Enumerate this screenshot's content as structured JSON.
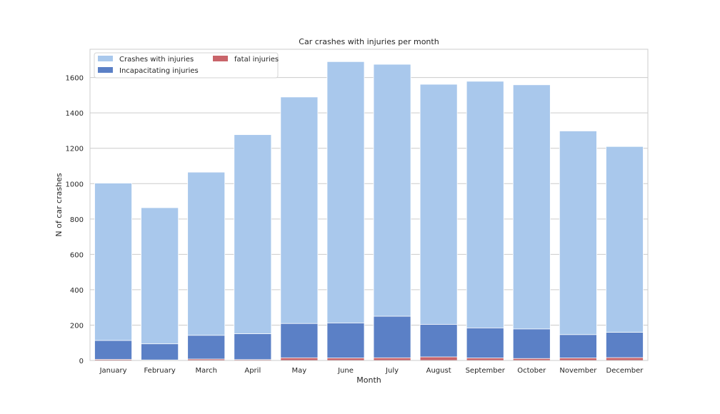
{
  "chart_data": {
    "type": "bar",
    "title": "Car crashes with injuries per month",
    "xlabel": "Month",
    "ylabel": "N of car crashes",
    "ylim": [
      0,
      1760
    ],
    "yticks": [
      0,
      200,
      400,
      600,
      800,
      1000,
      1200,
      1400,
      1600
    ],
    "grid": "horizontal",
    "legend_position": "top-left",
    "bar_mode": "overlaid",
    "categories": [
      "January",
      "February",
      "March",
      "April",
      "May",
      "June",
      "July",
      "August",
      "September",
      "October",
      "November",
      "December"
    ],
    "series": [
      {
        "name": "Crashes with injuries",
        "color": "#a9c8ec",
        "values": [
          1003,
          864,
          1065,
          1277,
          1490,
          1690,
          1675,
          1562,
          1579,
          1559,
          1298,
          1210
        ]
      },
      {
        "name": "Incapacitating injuries",
        "color": "#5b80c6",
        "values": [
          113,
          94,
          142,
          151,
          209,
          212,
          250,
          204,
          184,
          178,
          146,
          159
        ]
      },
      {
        "name": "fatal injuries",
        "color": "#c9646a",
        "values": [
          6,
          3,
          8,
          5,
          15,
          14,
          15,
          20,
          14,
          11,
          14,
          16
        ]
      }
    ]
  }
}
